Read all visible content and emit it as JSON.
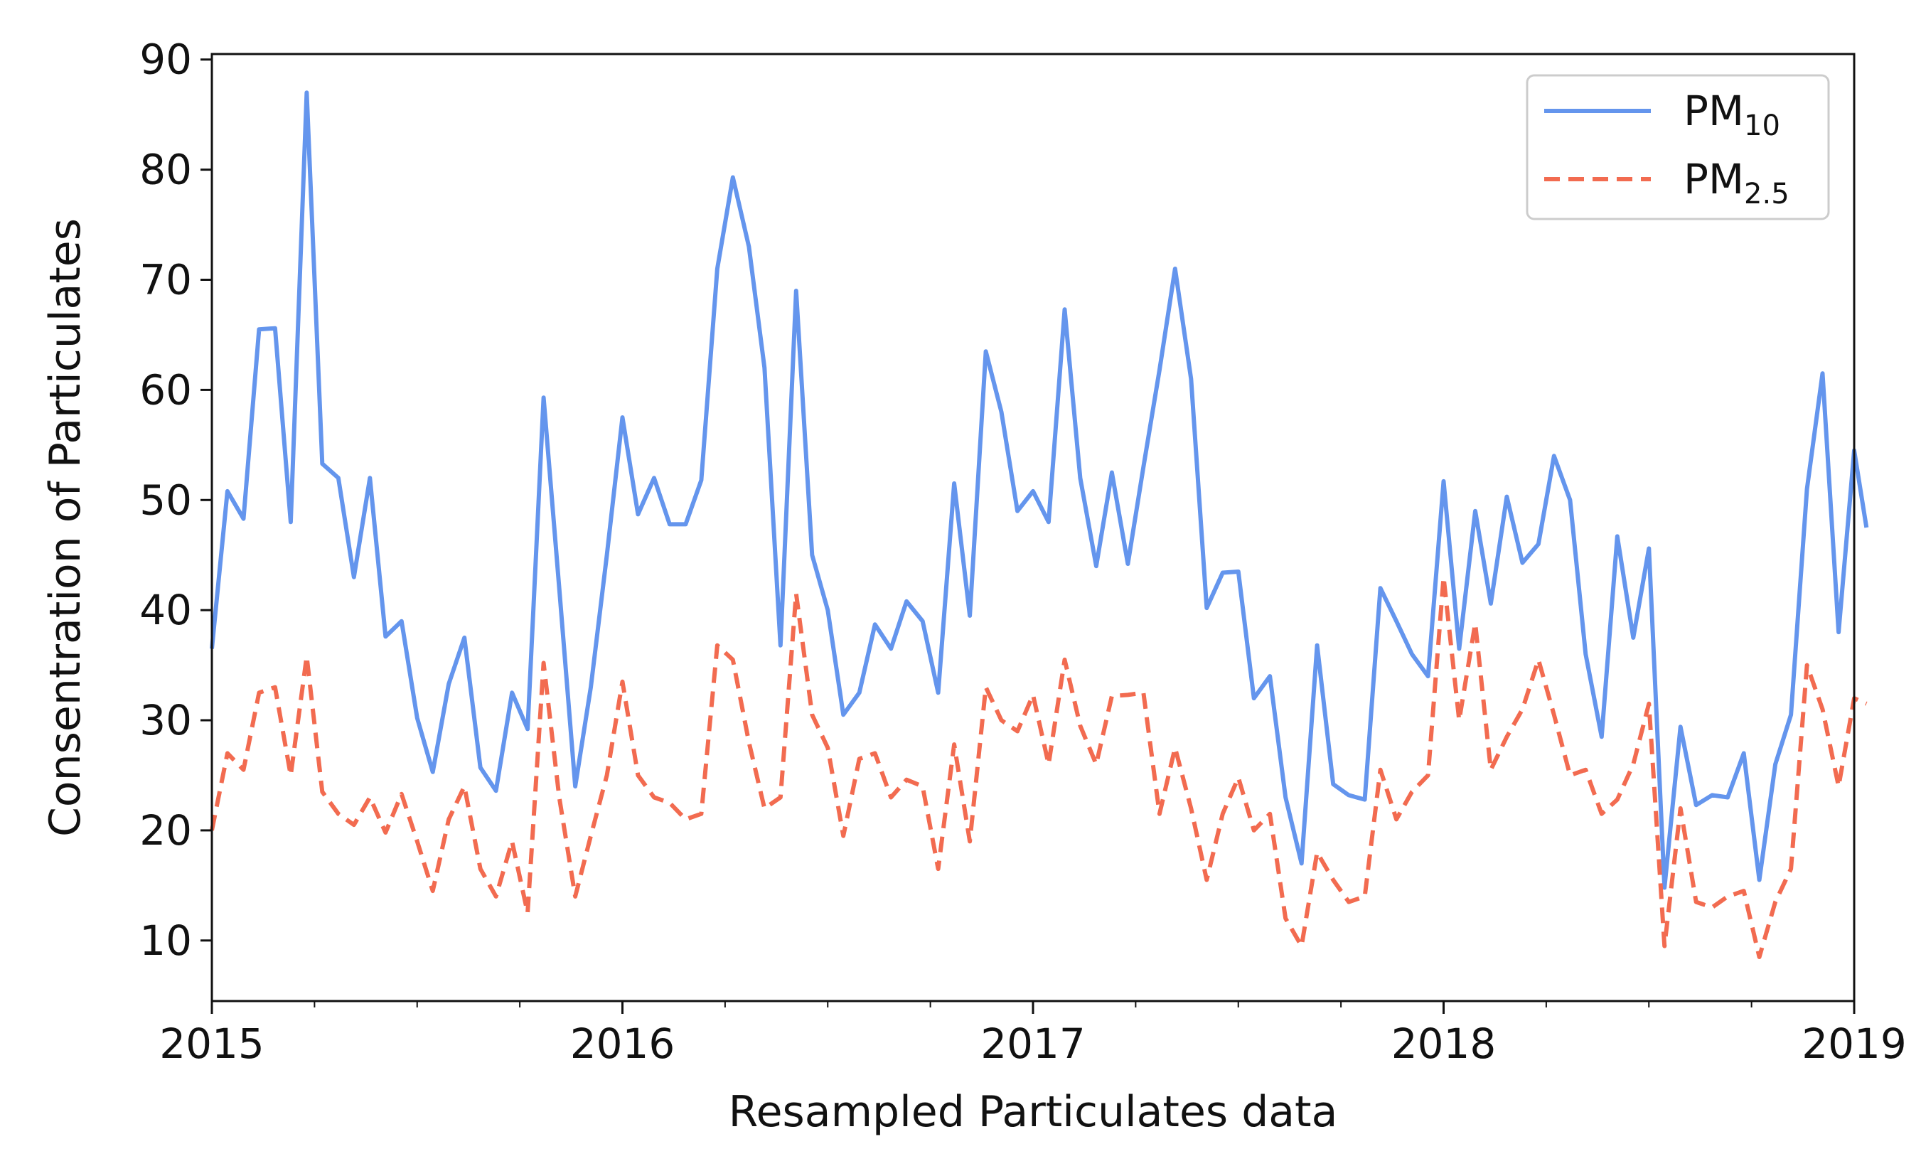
{
  "chart_data": {
    "type": "line",
    "title": "",
    "xlabel": "Resampled Particulates data",
    "ylabel": "Consentration of Particulates",
    "xlim": [
      2015.0,
      2019.0
    ],
    "ylim": [
      4.5,
      90.5
    ],
    "x_ticks": [
      {
        "value": 2015,
        "label": "2015"
      },
      {
        "value": 2016,
        "label": "2016"
      },
      {
        "value": 2017,
        "label": "2017"
      },
      {
        "value": 2018,
        "label": "2018"
      },
      {
        "value": 2019,
        "label": "2019"
      }
    ],
    "y_ticks": [
      10,
      20,
      30,
      40,
      50,
      60,
      70,
      80,
      90
    ],
    "grid": false,
    "legend": {
      "location": "top-right",
      "entries": [
        {
          "main": "PM",
          "sub": "10",
          "color": "#6495ED",
          "style": "solid"
        },
        {
          "main": "PM",
          "sub": "2.5",
          "color": "#F26B50",
          "style": "dashed"
        }
      ]
    },
    "series": [
      {
        "name": "PM10",
        "color": "#6495ED",
        "style": "solid",
        "points": [
          [
            2015.0,
            36.5
          ],
          [
            2015.038,
            50.8
          ],
          [
            2015.077,
            48.3
          ],
          [
            2015.115,
            65.5
          ],
          [
            2015.154,
            65.6
          ],
          [
            2015.192,
            48.0
          ],
          [
            2015.231,
            87.0
          ],
          [
            2015.269,
            53.3
          ],
          [
            2015.308,
            52.0
          ],
          [
            2015.346,
            43.0
          ],
          [
            2015.385,
            52.0
          ],
          [
            2015.423,
            37.6
          ],
          [
            2015.462,
            39.0
          ],
          [
            2015.5,
            30.2
          ],
          [
            2015.538,
            25.3
          ],
          [
            2015.577,
            33.3
          ],
          [
            2015.615,
            37.5
          ],
          [
            2015.654,
            25.7
          ],
          [
            2015.692,
            23.6
          ],
          [
            2015.731,
            32.5
          ],
          [
            2015.769,
            29.2
          ],
          [
            2015.808,
            59.3
          ],
          [
            2015.846,
            42.0
          ],
          [
            2015.885,
            24.0
          ],
          [
            2015.923,
            33.0
          ],
          [
            2015.962,
            45.0
          ],
          [
            2016.0,
            57.5
          ],
          [
            2016.038,
            48.7
          ],
          [
            2016.077,
            52.0
          ],
          [
            2016.115,
            47.8
          ],
          [
            2016.154,
            47.8
          ],
          [
            2016.192,
            51.8
          ],
          [
            2016.231,
            71.0
          ],
          [
            2016.269,
            79.3
          ],
          [
            2016.308,
            73.0
          ],
          [
            2016.346,
            62.0
          ],
          [
            2016.385,
            36.8
          ],
          [
            2016.423,
            69.0
          ],
          [
            2016.462,
            45.0
          ],
          [
            2016.5,
            40.0
          ],
          [
            2016.538,
            30.5
          ],
          [
            2016.577,
            32.5
          ],
          [
            2016.615,
            38.7
          ],
          [
            2016.654,
            36.5
          ],
          [
            2016.692,
            40.8
          ],
          [
            2016.731,
            39.0
          ],
          [
            2016.769,
            32.5
          ],
          [
            2016.808,
            51.5
          ],
          [
            2016.846,
            39.5
          ],
          [
            2016.885,
            63.5
          ],
          [
            2016.923,
            58.0
          ],
          [
            2016.962,
            49.0
          ],
          [
            2017.0,
            50.8
          ],
          [
            2017.038,
            48.0
          ],
          [
            2017.077,
            67.3
          ],
          [
            2017.115,
            52.0
          ],
          [
            2017.154,
            44.0
          ],
          [
            2017.192,
            52.5
          ],
          [
            2017.231,
            44.2
          ],
          [
            2017.269,
            53.0
          ],
          [
            2017.308,
            61.8
          ],
          [
            2017.346,
            71.0
          ],
          [
            2017.385,
            61.0
          ],
          [
            2017.423,
            40.2
          ],
          [
            2017.462,
            43.4
          ],
          [
            2017.5,
            43.5
          ],
          [
            2017.538,
            32.0
          ],
          [
            2017.577,
            34.0
          ],
          [
            2017.615,
            23.0
          ],
          [
            2017.654,
            17.0
          ],
          [
            2017.692,
            36.8
          ],
          [
            2017.731,
            24.2
          ],
          [
            2017.769,
            23.2
          ],
          [
            2017.808,
            22.8
          ],
          [
            2017.846,
            42.0
          ],
          [
            2017.885,
            39.0
          ],
          [
            2017.923,
            36.0
          ],
          [
            2017.962,
            34.0
          ],
          [
            2018.0,
            51.7
          ],
          [
            2018.038,
            36.5
          ],
          [
            2018.077,
            49.0
          ],
          [
            2018.115,
            40.6
          ],
          [
            2018.154,
            50.3
          ],
          [
            2018.192,
            44.3
          ],
          [
            2018.231,
            46.0
          ],
          [
            2018.269,
            54.0
          ],
          [
            2018.308,
            50.0
          ],
          [
            2018.346,
            36.0
          ],
          [
            2018.385,
            28.5
          ],
          [
            2018.423,
            46.7
          ],
          [
            2018.462,
            37.5
          ],
          [
            2018.5,
            45.6
          ],
          [
            2018.538,
            14.8
          ],
          [
            2018.577,
            29.4
          ],
          [
            2018.615,
            22.3
          ],
          [
            2018.654,
            23.2
          ],
          [
            2018.692,
            23.0
          ],
          [
            2018.731,
            27.0
          ],
          [
            2018.769,
            15.5
          ],
          [
            2018.808,
            26.0
          ],
          [
            2018.846,
            30.5
          ],
          [
            2018.885,
            51.0
          ],
          [
            2018.923,
            61.5
          ],
          [
            2018.962,
            38.0
          ],
          [
            2019.0,
            54.5
          ],
          [
            2019.03,
            47.5
          ]
        ]
      },
      {
        "name": "PM2.5",
        "color": "#F26B50",
        "style": "dashed",
        "points": [
          [
            2015.0,
            20.0
          ],
          [
            2015.038,
            27.0
          ],
          [
            2015.077,
            25.5
          ],
          [
            2015.115,
            32.5
          ],
          [
            2015.154,
            33.0
          ],
          [
            2015.192,
            25.0
          ],
          [
            2015.231,
            35.8
          ],
          [
            2015.269,
            23.5
          ],
          [
            2015.308,
            21.5
          ],
          [
            2015.346,
            20.5
          ],
          [
            2015.385,
            23.0
          ],
          [
            2015.423,
            19.8
          ],
          [
            2015.462,
            23.3
          ],
          [
            2015.5,
            19.0
          ],
          [
            2015.538,
            14.5
          ],
          [
            2015.577,
            21.0
          ],
          [
            2015.615,
            24.0
          ],
          [
            2015.654,
            16.5
          ],
          [
            2015.692,
            14.0
          ],
          [
            2015.731,
            19.0
          ],
          [
            2015.769,
            12.5
          ],
          [
            2015.808,
            35.2
          ],
          [
            2015.846,
            23.0
          ],
          [
            2015.885,
            14.0
          ],
          [
            2015.923,
            19.5
          ],
          [
            2015.962,
            25.0
          ],
          [
            2016.0,
            33.5
          ],
          [
            2016.038,
            25.0
          ],
          [
            2016.077,
            23.0
          ],
          [
            2016.115,
            22.5
          ],
          [
            2016.154,
            21.0
          ],
          [
            2016.192,
            21.5
          ],
          [
            2016.231,
            36.8
          ],
          [
            2016.269,
            35.5
          ],
          [
            2016.308,
            28.0
          ],
          [
            2016.346,
            22.0
          ],
          [
            2016.385,
            23.0
          ],
          [
            2016.423,
            41.5
          ],
          [
            2016.462,
            30.5
          ],
          [
            2016.5,
            27.5
          ],
          [
            2016.538,
            19.5
          ],
          [
            2016.577,
            26.5
          ],
          [
            2016.615,
            27.0
          ],
          [
            2016.654,
            23.0
          ],
          [
            2016.692,
            24.6
          ],
          [
            2016.731,
            24.0
          ],
          [
            2016.769,
            16.5
          ],
          [
            2016.808,
            27.8
          ],
          [
            2016.846,
            19.0
          ],
          [
            2016.885,
            33.0
          ],
          [
            2016.923,
            30.0
          ],
          [
            2016.962,
            29.0
          ],
          [
            2017.0,
            32.3
          ],
          [
            2017.038,
            26.0
          ],
          [
            2017.077,
            35.5
          ],
          [
            2017.115,
            29.5
          ],
          [
            2017.154,
            26.0
          ],
          [
            2017.192,
            32.2
          ],
          [
            2017.231,
            32.3
          ],
          [
            2017.269,
            32.5
          ],
          [
            2017.308,
            21.5
          ],
          [
            2017.346,
            27.5
          ],
          [
            2017.385,
            22.0
          ],
          [
            2017.423,
            15.5
          ],
          [
            2017.462,
            21.5
          ],
          [
            2017.5,
            24.8
          ],
          [
            2017.538,
            20.0
          ],
          [
            2017.577,
            21.5
          ],
          [
            2017.615,
            12.0
          ],
          [
            2017.654,
            9.5
          ],
          [
            2017.692,
            18.0
          ],
          [
            2017.731,
            15.5
          ],
          [
            2017.769,
            13.5
          ],
          [
            2017.808,
            14.0
          ],
          [
            2017.846,
            25.5
          ],
          [
            2017.885,
            21.0
          ],
          [
            2017.923,
            23.5
          ],
          [
            2017.962,
            25.0
          ],
          [
            2018.0,
            43.0
          ],
          [
            2018.038,
            30.0
          ],
          [
            2018.077,
            38.8
          ],
          [
            2018.115,
            25.5
          ],
          [
            2018.154,
            28.5
          ],
          [
            2018.192,
            31.0
          ],
          [
            2018.231,
            35.5
          ],
          [
            2018.269,
            30.5
          ],
          [
            2018.308,
            25.0
          ],
          [
            2018.346,
            25.5
          ],
          [
            2018.385,
            21.5
          ],
          [
            2018.423,
            22.8
          ],
          [
            2018.462,
            26.0
          ],
          [
            2018.5,
            31.5
          ],
          [
            2018.538,
            9.5
          ],
          [
            2018.577,
            22.0
          ],
          [
            2018.615,
            13.5
          ],
          [
            2018.654,
            13.0
          ],
          [
            2018.692,
            14.0
          ],
          [
            2018.731,
            14.5
          ],
          [
            2018.769,
            8.5
          ],
          [
            2018.808,
            13.5
          ],
          [
            2018.846,
            16.5
          ],
          [
            2018.885,
            35.0
          ],
          [
            2018.923,
            31.0
          ],
          [
            2018.962,
            24.0
          ],
          [
            2019.0,
            32.0
          ],
          [
            2019.03,
            31.5
          ]
        ]
      }
    ]
  }
}
